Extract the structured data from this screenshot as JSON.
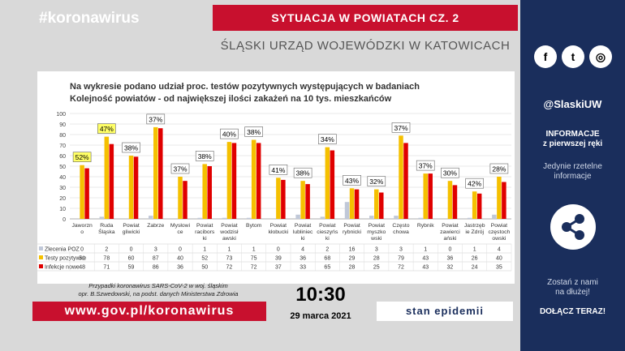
{
  "header": {
    "hashtag": "#koronawirus",
    "title": "SYTUACJA W POWIATACH  CZ. 2",
    "subtitle": "ŚLĄSKI URZĄD WOJEWÓDZKI W KATOWICACH"
  },
  "sidebar": {
    "social_icons": [
      "facebook-icon",
      "twitter-icon",
      "instagram-icon"
    ],
    "handle": "@SlaskiUW",
    "info_line1": "INFORMACJE",
    "info_line2": "z pierwszej ręki",
    "info_sub1": "Jedynie rzetelne",
    "info_sub2": "informacje",
    "share_icon": "share-icon",
    "stay_line1": "Zostań z nami",
    "stay_line2": "na dłużej!",
    "join": "DOŁĄCZ TERAZ!"
  },
  "footer": {
    "source_line1": "Przypadki koronawirus SARS-CoV-2 w woj. śląskim",
    "source_line2": "opr. B.Szwedowski, na podst. danych Ministerstwa Zdrowia",
    "url": "www.gov.pl/koronawirus",
    "time": "10:30",
    "date": "29 marca 2021",
    "stan": "stan epidemii"
  },
  "colors": {
    "red": "#c8102e",
    "navy": "#1a2e5c",
    "series_zlecenia": "#c0c8d8",
    "series_testy": "#f5c000",
    "series_infekcje": "#e00000",
    "label_box": "#ffff66"
  },
  "chart_data": {
    "type": "bar",
    "title": "Na wykresie podano udział proc. testów pozytywnych występujących w badaniach",
    "subtitle": "Kolejność powiatów - od największej ilości zakażeń na 10 tys. mieszkańców",
    "categories": [
      [
        "Jaworzn",
        "o"
      ],
      [
        "Ruda",
        "Śląska"
      ],
      [
        "Powiat",
        "gliwicki"
      ],
      [
        "Zabrze"
      ],
      [
        "Mysłowi",
        "ce"
      ],
      [
        "Powiat",
        "racibors",
        "ki"
      ],
      [
        "Powiat",
        "wodzisł",
        "awski"
      ],
      [
        "Bytom"
      ],
      [
        "Powiat",
        "kłobucki"
      ],
      [
        "Powiat",
        "lubliniec",
        "ki"
      ],
      [
        "Powiat",
        "cieszyńs",
        "ki"
      ],
      [
        "Powiat",
        "rybnicki"
      ],
      [
        "Powiat",
        "myszko",
        "wski"
      ],
      [
        "Często",
        "chowa"
      ],
      [
        "Rybnik"
      ],
      [
        "Powiat",
        "zawierci",
        "ański"
      ],
      [
        "Jastrzęb",
        "ie Zdrój"
      ],
      [
        "Powiat",
        "częstoch",
        "owski"
      ]
    ],
    "series": [
      {
        "name": "Zlecenia POZ",
        "values": [
          0,
          2,
          0,
          3,
          0,
          1,
          1,
          1,
          0,
          4,
          2,
          16,
          3,
          3,
          1,
          0,
          1,
          4
        ]
      },
      {
        "name": "Testy pozytywne",
        "values": [
          51,
          78,
          60,
          87,
          40,
          52,
          73,
          75,
          39,
          36,
          68,
          29,
          28,
          79,
          43,
          36,
          26,
          40
        ]
      },
      {
        "name": "Infekcje nowe",
        "values": [
          48,
          71,
          59,
          86,
          36,
          50,
          72,
          72,
          37,
          33,
          65,
          28,
          25,
          72,
          43,
          32,
          24,
          35
        ]
      }
    ],
    "percent_labels": [
      "52%",
      "47%",
      "38%",
      "37%",
      "37%",
      "38%",
      "40%",
      "38%",
      "41%",
      "38%",
      "34%",
      "43%",
      "32%",
      "37%",
      "37%",
      "30%",
      "42%",
      "28%"
    ],
    "highlight_labels": [
      0,
      1
    ],
    "ylim": [
      0,
      100
    ],
    "yticks": [
      0,
      10,
      20,
      30,
      40,
      50,
      60,
      70,
      80,
      90,
      100
    ],
    "legend_placement": "table-left",
    "grid": true
  }
}
